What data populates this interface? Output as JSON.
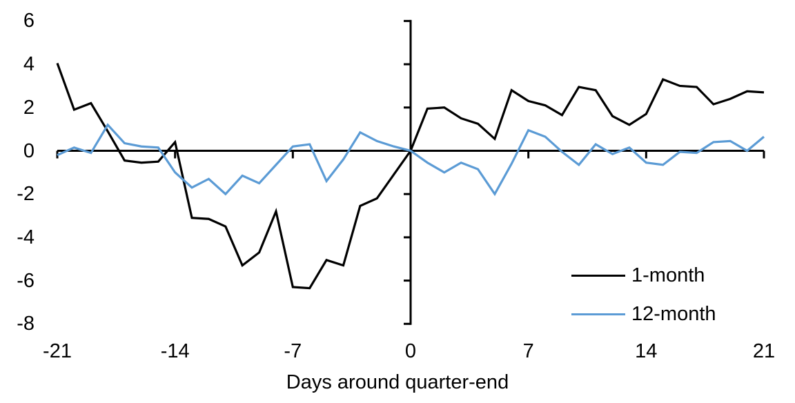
{
  "chart_data": {
    "type": "line",
    "title": "",
    "xlabel": "Days around quarter-end",
    "ylabel": "",
    "xlim": [
      -21,
      21
    ],
    "ylim": [
      -8,
      6
    ],
    "grid": false,
    "legend_position": "lower right",
    "x_ticks": [
      "-21",
      "-14",
      "-7",
      "0",
      "7",
      "14",
      "21"
    ],
    "x_tick_values": [
      -21,
      -14,
      -7,
      0,
      7,
      14,
      21
    ],
    "y_ticks": [
      "6",
      "4",
      "2",
      "0",
      "-2",
      "-4",
      "-6",
      "-8"
    ],
    "y_tick_values": [
      6,
      4,
      2,
      0,
      -2,
      -4,
      -6,
      -8
    ],
    "x": [
      -21,
      -20,
      -19,
      -18,
      -17,
      -16,
      -15,
      -14,
      -13,
      -12,
      -11,
      -10,
      -9,
      -8,
      -7,
      -6,
      -5,
      -4,
      -3,
      -2,
      -1,
      0,
      1,
      2,
      3,
      4,
      5,
      6,
      7,
      8,
      9,
      10,
      11,
      12,
      13,
      14,
      15,
      16,
      17,
      18,
      19,
      20,
      21
    ],
    "series": [
      {
        "name": "1-month",
        "color": "#000000",
        "values": [
          4.05,
          1.9,
          2.2,
          0.9,
          -0.45,
          -0.55,
          -0.5,
          0.4,
          -3.1,
          -3.15,
          -3.5,
          -5.3,
          -4.7,
          -2.8,
          -6.3,
          -6.35,
          -5.05,
          -5.3,
          -2.55,
          -2.2,
          -1.1,
          0,
          1.95,
          2.0,
          1.5,
          1.25,
          0.55,
          2.8,
          2.3,
          2.1,
          1.65,
          2.95,
          2.8,
          1.6,
          1.2,
          1.7,
          3.3,
          3.0,
          2.95,
          2.15,
          2.4,
          2.75,
          2.7
        ]
      },
      {
        "name": "12-month",
        "color": "#5B9BD5",
        "values": [
          -0.2,
          0.15,
          -0.1,
          1.2,
          0.35,
          0.2,
          0.15,
          -1.0,
          -1.7,
          -1.3,
          -2.0,
          -1.15,
          -1.5,
          -0.65,
          0.2,
          0.3,
          -1.4,
          -0.4,
          0.85,
          0.45,
          0.2,
          0,
          -0.55,
          -1.0,
          -0.55,
          -0.85,
          -2.0,
          -0.6,
          0.95,
          0.65,
          -0.05,
          -0.65,
          0.3,
          -0.15,
          0.15,
          -0.55,
          -0.65,
          -0.05,
          -0.1,
          0.4,
          0.45,
          0.0,
          0.65
        ]
      }
    ],
    "axis_color": "#000000"
  }
}
